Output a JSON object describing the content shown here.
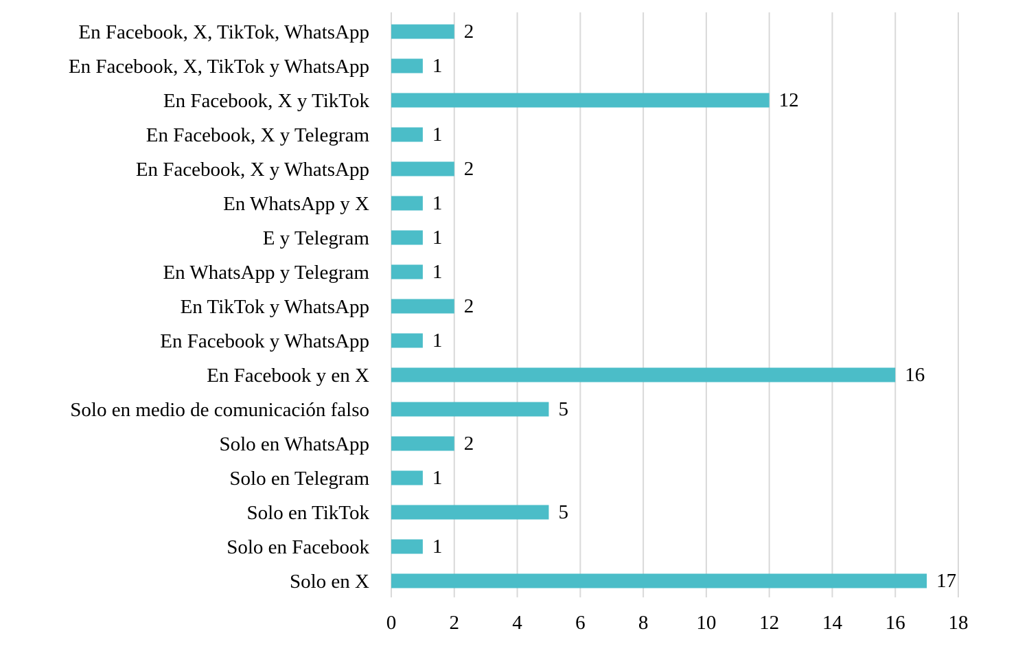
{
  "chart_data": {
    "type": "bar",
    "orientation": "horizontal",
    "categories": [
      "En Facebook, X, TikTok, WhatsApp",
      "En Facebook, X, TikTok y WhatsApp",
      "En Facebook, X y TikTok",
      "En Facebook, X y Telegram",
      "En Facebook, X y WhatsApp",
      "En WhatsApp y X",
      "E y Telegram",
      "En WhatsApp y Telegram",
      "En TikTok y WhatsApp",
      "En Facebook y WhatsApp",
      "En Facebook y en X",
      "Solo en medio de comunicación falso",
      "Solo en WhatsApp",
      "Solo en Telegram",
      "Solo en TikTok",
      "Solo en Facebook",
      "Solo en X"
    ],
    "values": [
      2,
      1,
      12,
      1,
      2,
      1,
      1,
      1,
      2,
      1,
      16,
      5,
      2,
      1,
      5,
      1,
      17
    ],
    "title": "",
    "xlabel": "",
    "ylabel": "",
    "xlim": [
      0,
      18
    ],
    "x_ticks": [
      0,
      2,
      4,
      6,
      8,
      10,
      12,
      14,
      16,
      18
    ],
    "grid": "vertical",
    "legend": "none",
    "data_labels": true,
    "colors": {
      "bar": "#4BBDC8",
      "grid": "#D9D9D9",
      "text": "#000000"
    }
  }
}
